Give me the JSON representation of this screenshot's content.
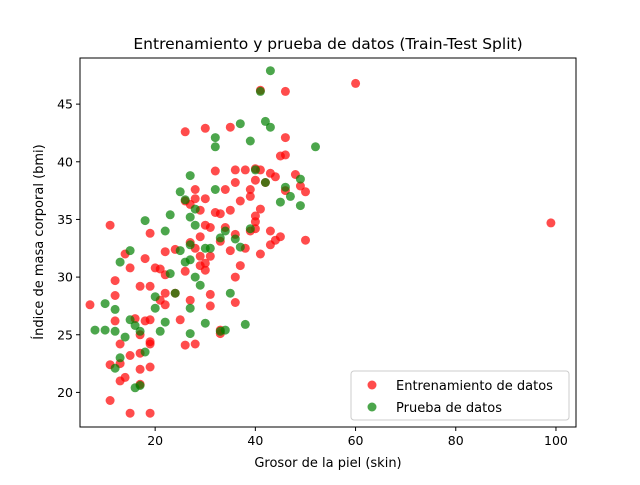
{
  "chart_data": {
    "type": "scatter",
    "title": "Entrenamiento y prueba de datos (Train-Test Split)",
    "xlabel": "Grosor de la piel (skin)",
    "ylabel": "Índice de masa corporal (bmi)",
    "xlim": [
      5,
      104
    ],
    "ylim": [
      17,
      49
    ],
    "xticks": [
      20,
      40,
      60,
      80,
      100
    ],
    "yticks": [
      20,
      25,
      30,
      35,
      40,
      45
    ],
    "grid": false,
    "legend_position": "lower-right",
    "series": [
      {
        "name": "Entrenamiento de datos",
        "color": "#ff0000",
        "points": [
          [
            60,
            46.8
          ],
          [
            41,
            46.2
          ],
          [
            46,
            46.1
          ],
          [
            99,
            34.7
          ],
          [
            26,
            42.6
          ],
          [
            30,
            42.9
          ],
          [
            35,
            43.0
          ],
          [
            46,
            42.1
          ],
          [
            45,
            40.5
          ],
          [
            46,
            40.6
          ],
          [
            32,
            39.2
          ],
          [
            36,
            39.3
          ],
          [
            38,
            39.3
          ],
          [
            40,
            39.4
          ],
          [
            41,
            39.3
          ],
          [
            43,
            39.0
          ],
          [
            44,
            38.7
          ],
          [
            48,
            38.9
          ],
          [
            49,
            37.9
          ],
          [
            42,
            38.2
          ],
          [
            28,
            37.6
          ],
          [
            28,
            36.8
          ],
          [
            30,
            36.8
          ],
          [
            34,
            37.6
          ],
          [
            36,
            38.2
          ],
          [
            39,
            37.6
          ],
          [
            40,
            38.4
          ],
          [
            46,
            37.5
          ],
          [
            50,
            37.4
          ],
          [
            26,
            36.6
          ],
          [
            27,
            36.3
          ],
          [
            29,
            35.8
          ],
          [
            32,
            35.6
          ],
          [
            33,
            35.5
          ],
          [
            35,
            35.8
          ],
          [
            37,
            36.6
          ],
          [
            39,
            37.0
          ],
          [
            41,
            35.9
          ],
          [
            40,
            35.3
          ],
          [
            40,
            34.8
          ],
          [
            34,
            34.3
          ],
          [
            31,
            34.3
          ],
          [
            30,
            34.5
          ],
          [
            29,
            33.5
          ],
          [
            33,
            33.1
          ],
          [
            27,
            33.0
          ],
          [
            36,
            33.7
          ],
          [
            39,
            34.0
          ],
          [
            40,
            34.2
          ],
          [
            43,
            34.0
          ],
          [
            44,
            33.2
          ],
          [
            45,
            33.5
          ],
          [
            50,
            33.2
          ],
          [
            11,
            34.5
          ],
          [
            19,
            33.8
          ],
          [
            22,
            32.2
          ],
          [
            24,
            32.4
          ],
          [
            28,
            32.5
          ],
          [
            29,
            31.8
          ],
          [
            30,
            31.2
          ],
          [
            31,
            31.8
          ],
          [
            35,
            32.3
          ],
          [
            36,
            30.0
          ],
          [
            37,
            31.0
          ],
          [
            38,
            32.5
          ],
          [
            41,
            32.0
          ],
          [
            43,
            32.8
          ],
          [
            14,
            32.0
          ],
          [
            15,
            30.8
          ],
          [
            18,
            31.6
          ],
          [
            20,
            30.8
          ],
          [
            21,
            30.7
          ],
          [
            22,
            30.2
          ],
          [
            26,
            30.5
          ],
          [
            29,
            31.0
          ],
          [
            30,
            30.6
          ],
          [
            12,
            29.7
          ],
          [
            17,
            29.2
          ],
          [
            19,
            29.2
          ],
          [
            22,
            28.6
          ],
          [
            24,
            28.6
          ],
          [
            21,
            28.0
          ],
          [
            22,
            27.6
          ],
          [
            27,
            28.0
          ],
          [
            31,
            28.5
          ],
          [
            31,
            27.5
          ],
          [
            36,
            27.8
          ],
          [
            12,
            28.4
          ],
          [
            7,
            27.6
          ],
          [
            12,
            26.2
          ],
          [
            16,
            26.4
          ],
          [
            18,
            26.2
          ],
          [
            19,
            26.3
          ],
          [
            25,
            26.3
          ],
          [
            17,
            25.0
          ],
          [
            13,
            24.2
          ],
          [
            19,
            24.2
          ],
          [
            19,
            24.4
          ],
          [
            26,
            24.1
          ],
          [
            28,
            24.2
          ],
          [
            33,
            25.1
          ],
          [
            33,
            25.4
          ],
          [
            11,
            22.4
          ],
          [
            13,
            22.5
          ],
          [
            15,
            23.2
          ],
          [
            17,
            23.4
          ],
          [
            17,
            22.0
          ],
          [
            19,
            22.2
          ],
          [
            14,
            21.3
          ],
          [
            17,
            20.7
          ],
          [
            13,
            21.0
          ],
          [
            11,
            19.3
          ],
          [
            15,
            18.2
          ],
          [
            19,
            18.2
          ]
        ]
      },
      {
        "name": "Prueba de datos",
        "color": "#008000",
        "points": [
          [
            43,
            47.9
          ],
          [
            41,
            46.1
          ],
          [
            37,
            43.3
          ],
          [
            42,
            43.5
          ],
          [
            43,
            43.0
          ],
          [
            32,
            42.1
          ],
          [
            32,
            41.3
          ],
          [
            39,
            41.8
          ],
          [
            52,
            41.3
          ],
          [
            40,
            39.3
          ],
          [
            27,
            38.8
          ],
          [
            42,
            38.2
          ],
          [
            49,
            38.5
          ],
          [
            46,
            37.8
          ],
          [
            25,
            37.4
          ],
          [
            32,
            37.6
          ],
          [
            47,
            37.0
          ],
          [
            26,
            36.7
          ],
          [
            45,
            36.5
          ],
          [
            49,
            36.2
          ],
          [
            28,
            35.9
          ],
          [
            18,
            34.9
          ],
          [
            23,
            35.4
          ],
          [
            27,
            35.2
          ],
          [
            22,
            34.0
          ],
          [
            28,
            34.5
          ],
          [
            33,
            33.4
          ],
          [
            34,
            34.0
          ],
          [
            39,
            34.2
          ],
          [
            36,
            33.3
          ],
          [
            27,
            32.8
          ],
          [
            25,
            32.3
          ],
          [
            30,
            32.5
          ],
          [
            31,
            32.5
          ],
          [
            37,
            32.6
          ],
          [
            15,
            32.3
          ],
          [
            13,
            31.3
          ],
          [
            26,
            31.3
          ],
          [
            27,
            31.5
          ],
          [
            23,
            30.3
          ],
          [
            28,
            30.0
          ],
          [
            29,
            29.3
          ],
          [
            20,
            28.3
          ],
          [
            24,
            28.6
          ],
          [
            35,
            28.6
          ],
          [
            12,
            27.2
          ],
          [
            20,
            27.3
          ],
          [
            27,
            27.3
          ],
          [
            10,
            27.7
          ],
          [
            15,
            26.3
          ],
          [
            16,
            25.8
          ],
          [
            22,
            26.1
          ],
          [
            30,
            26.0
          ],
          [
            38,
            25.9
          ],
          [
            8,
            25.4
          ],
          [
            10,
            25.4
          ],
          [
            12,
            25.3
          ],
          [
            17,
            25.3
          ],
          [
            21,
            25.3
          ],
          [
            27,
            25.1
          ],
          [
            33,
            25.3
          ],
          [
            34,
            25.4
          ],
          [
            14,
            24.8
          ],
          [
            13,
            23.0
          ],
          [
            18,
            23.5
          ],
          [
            12,
            22.1
          ],
          [
            16,
            20.4
          ],
          [
            17,
            20.6
          ]
        ]
      }
    ]
  }
}
